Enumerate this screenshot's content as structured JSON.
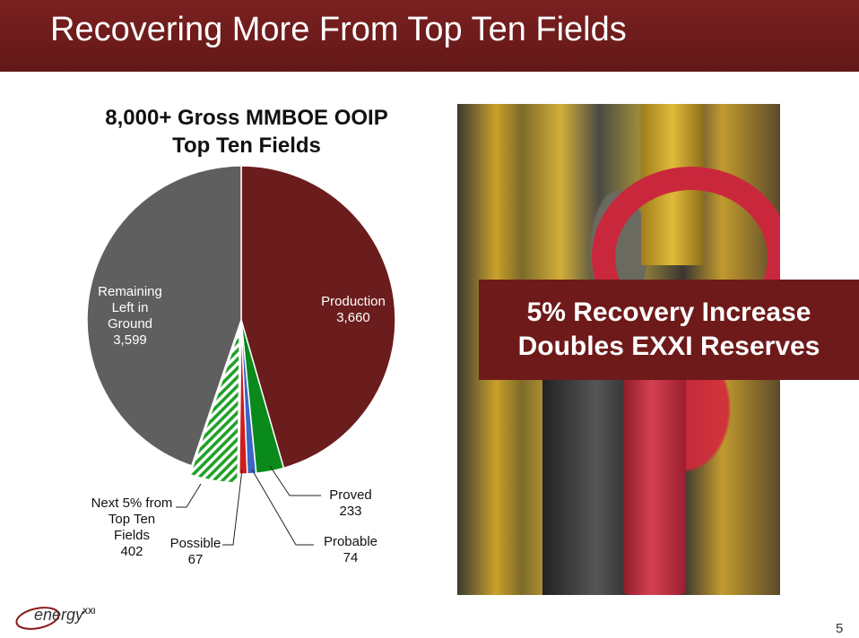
{
  "slide": {
    "title": "Recovering More From Top Ten Fields",
    "page_number": "5",
    "callout": {
      "line1": "5% Recovery Increase",
      "line2": "Doubles EXXI Reserves"
    },
    "logo": {
      "text": "energy",
      "superscript": "XXI"
    }
  },
  "chart_data": {
    "type": "pie",
    "title_line1": "8,000+ Gross MMBOE OOIP",
    "title_line2": "Top Ten Fields",
    "start_angle_deg": 0,
    "direction": "clockwise",
    "slices": [
      {
        "name": "Production",
        "value": 3660,
        "value_label": "3,660",
        "color": "#6b1c1c",
        "pattern": "solid"
      },
      {
        "name": "Proved",
        "value": 233,
        "value_label": "233",
        "color": "#0a8a1a",
        "pattern": "solid"
      },
      {
        "name": "Probable",
        "value": 74,
        "value_label": "74",
        "color": "#3a66c8",
        "pattern": "solid"
      },
      {
        "name": "Possible",
        "value": 67,
        "value_label": "67",
        "color": "#d01c1c",
        "pattern": "solid"
      },
      {
        "name": "Next 5% from Top Ten Fields",
        "value": 402,
        "value_label": "402",
        "color": "#22a02a",
        "pattern": "hatched",
        "exploded": true
      },
      {
        "name": "Remaining Left in Ground",
        "value": 3599,
        "value_label": "3,599",
        "color": "#5f5f5f",
        "pattern": "solid"
      }
    ],
    "labels": [
      {
        "lines": [
          "Production",
          "3,660"
        ],
        "placement": "inside"
      },
      {
        "lines": [
          "Proved",
          "233"
        ],
        "placement": "outside"
      },
      {
        "lines": [
          "Probable",
          "74"
        ],
        "placement": "outside"
      },
      {
        "lines": [
          "Possible",
          "67"
        ],
        "placement": "outside"
      },
      {
        "lines": [
          "Next 5% from",
          "Top Ten",
          "Fields",
          "402"
        ],
        "placement": "outside"
      },
      {
        "lines": [
          "Remaining",
          "Left in",
          "Ground",
          "3,599"
        ],
        "placement": "inside"
      }
    ]
  }
}
